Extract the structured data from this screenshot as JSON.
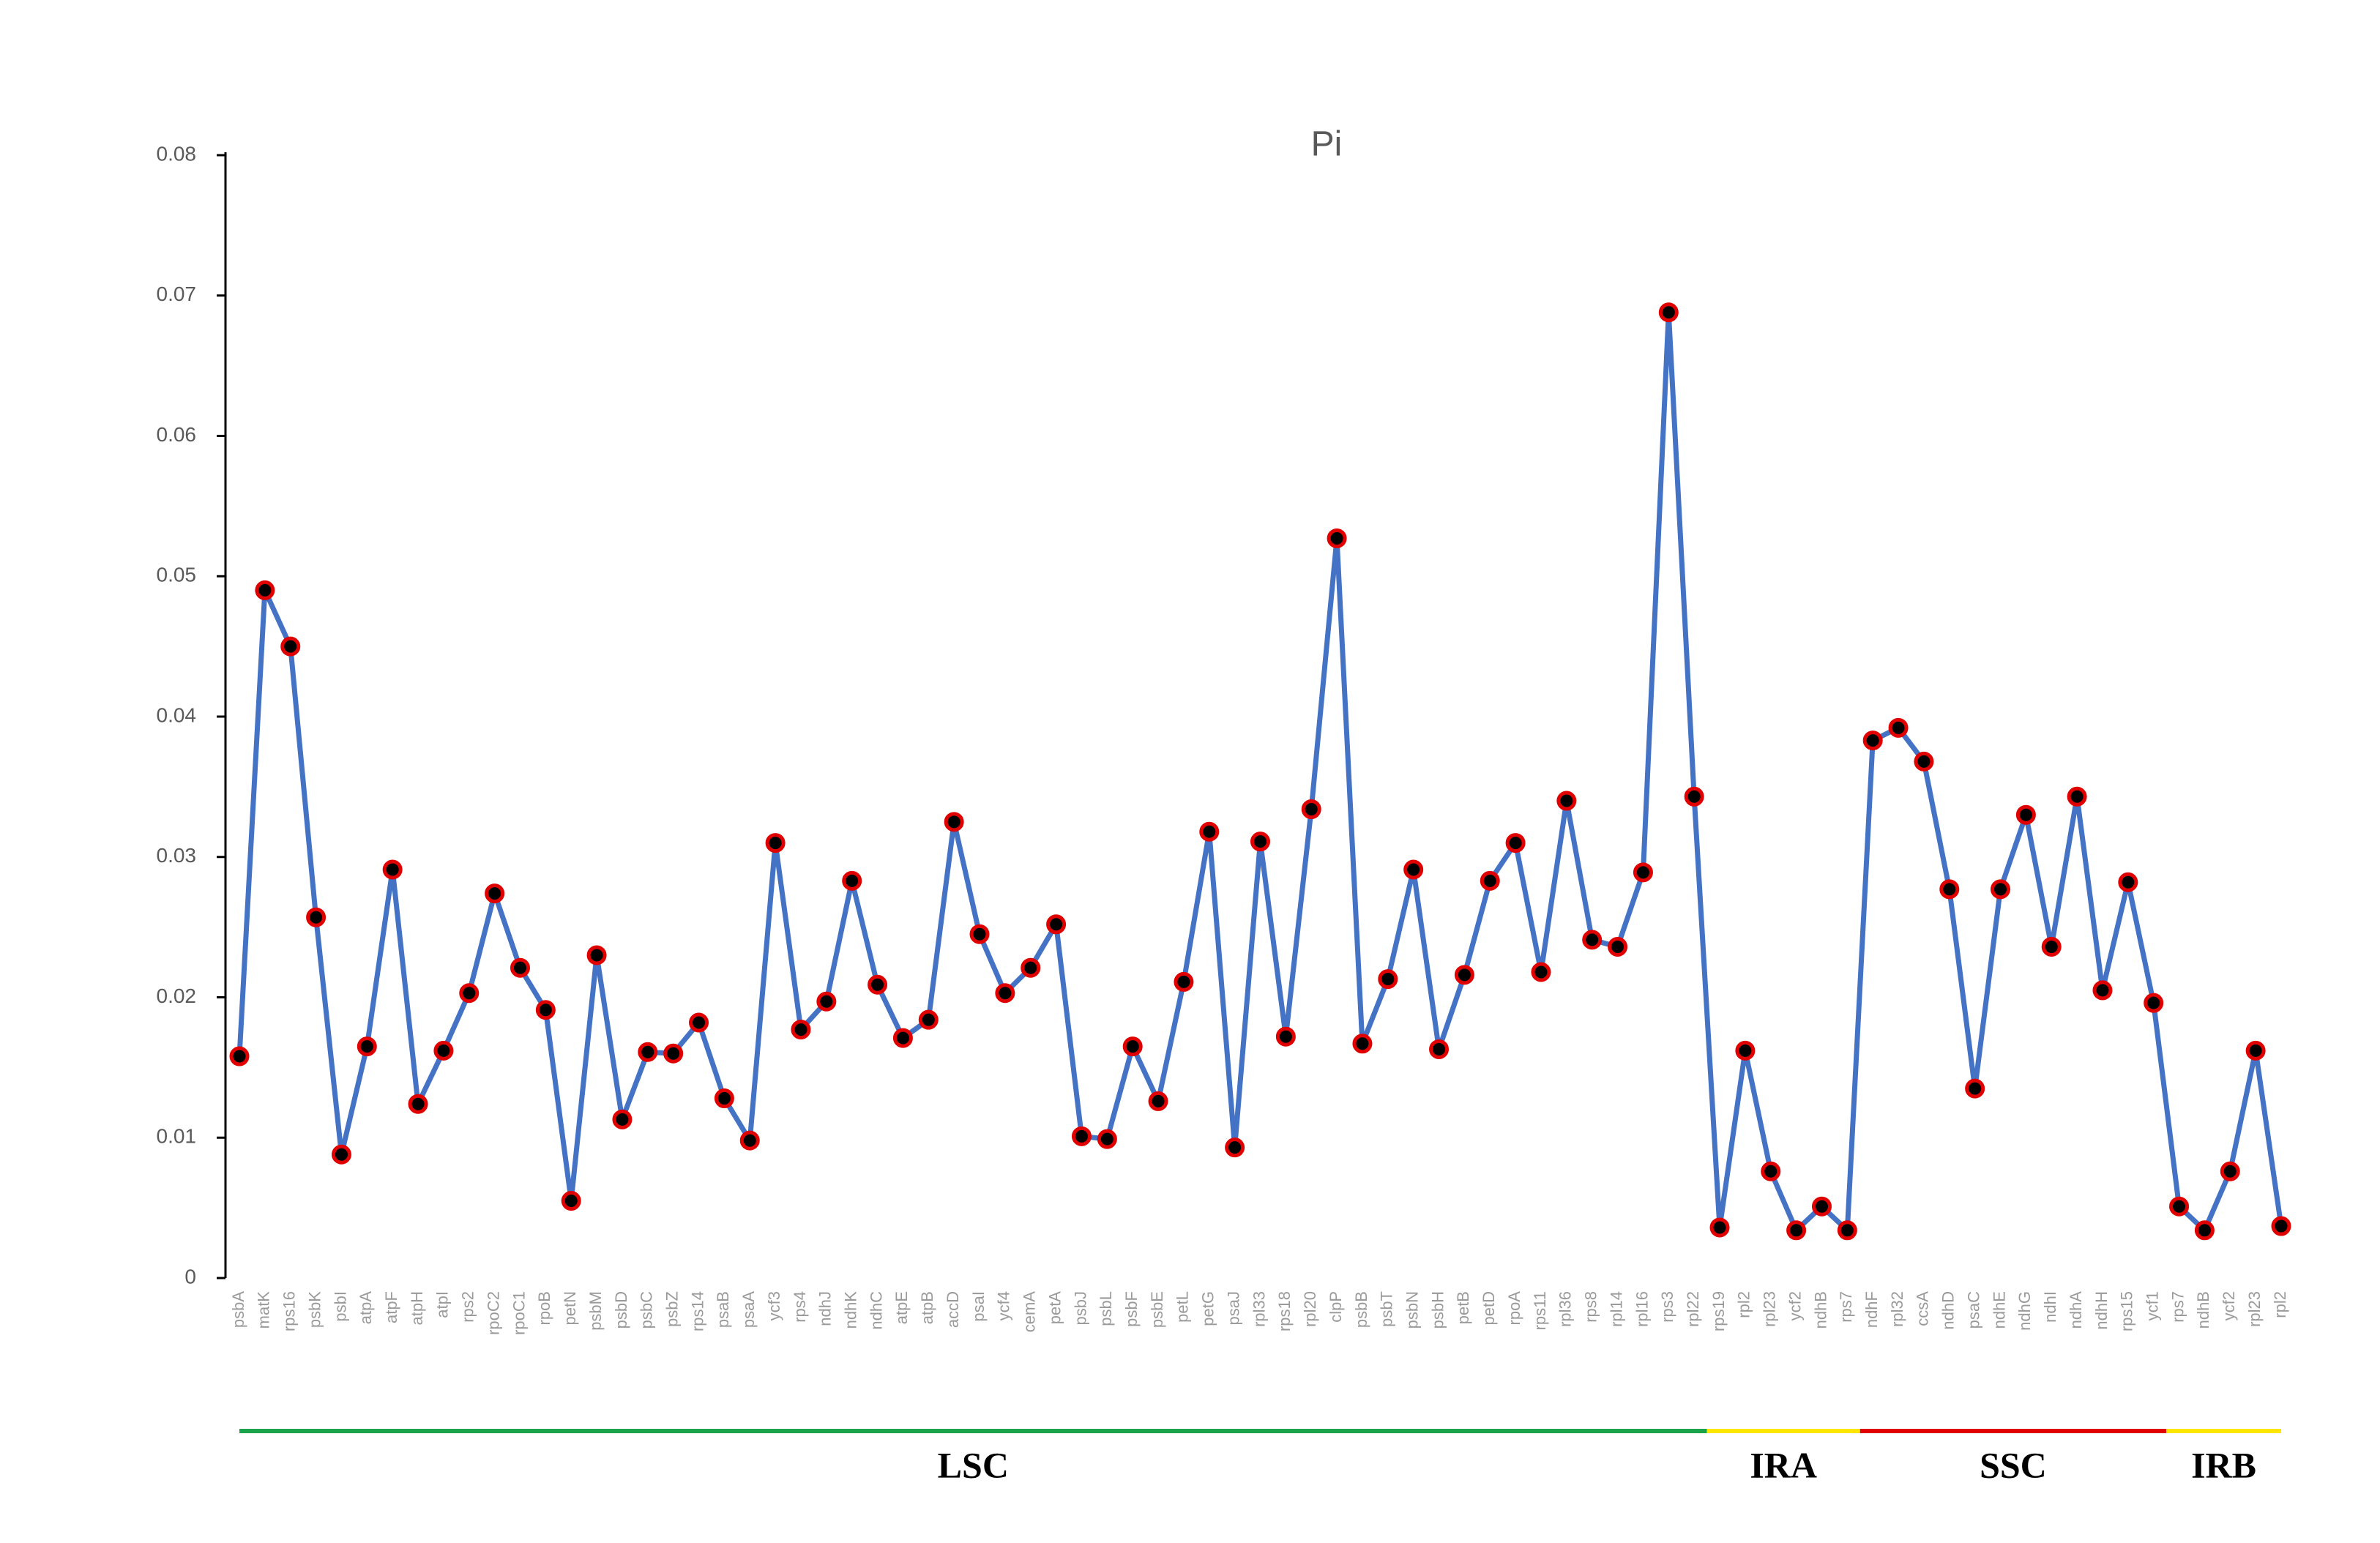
{
  "chart_data": {
    "type": "line",
    "title": "Pi",
    "categories": [
      "psbA",
      "matK",
      "rps16",
      "psbK",
      "psbI",
      "atpA",
      "atpF",
      "atpH",
      "atpI",
      "rps2",
      "rpoC2",
      "rpoC1",
      "rpoB",
      "petN",
      "psbM",
      "psbD",
      "psbC",
      "psbZ",
      "rps14",
      "psaB",
      "psaA",
      "ycf3",
      "rps4",
      "ndhJ",
      "ndhK",
      "ndhC",
      "atpE",
      "atpB",
      "accD",
      "psaI",
      "ycf4",
      "cemA",
      "petA",
      "psbJ",
      "psbL",
      "psbF",
      "psbE",
      "petL",
      "petG",
      "psaJ",
      "rpl33",
      "rps18",
      "rpl20",
      "clpP",
      "psbB",
      "psbT",
      "psbN",
      "psbH",
      "petB",
      "petD",
      "rpoA",
      "rps11",
      "rpl36",
      "rps8",
      "rpl14",
      "rpl16",
      "rps3",
      "rpl22",
      "rps19",
      "rpl2",
      "rpl23",
      "ycf2",
      "ndhB",
      "rps7",
      "ndhF",
      "rpl32",
      "ccsA",
      "ndhD",
      "psaC",
      "ndhE",
      "ndhG",
      "ndhI",
      "ndhA",
      "ndhH",
      "rps15",
      "ycf1",
      "rps7",
      "ndhB",
      "ycf2",
      "rpl23",
      "rpl2"
    ],
    "series": [
      {
        "name": "Pi",
        "color": "#4472c4",
        "marker_fill": "#000000",
        "marker_edge": "#e00000",
        "values": [
          0.0158,
          0.049,
          0.045,
          0.0257,
          0.0088,
          0.0165,
          0.0291,
          0.0124,
          0.0162,
          0.0203,
          0.0274,
          0.0221,
          0.0191,
          0.0055,
          0.023,
          0.0113,
          0.0161,
          0.016,
          0.0182,
          0.0128,
          0.0098,
          0.031,
          0.0177,
          0.0197,
          0.0283,
          0.0209,
          0.0171,
          0.0184,
          0.0325,
          0.0245,
          0.0203,
          0.0221,
          0.0252,
          0.0101,
          0.0099,
          0.0165,
          0.0126,
          0.0211,
          0.0318,
          0.0093,
          0.0311,
          0.0172,
          0.0334,
          0.0527,
          0.0167,
          0.0213,
          0.0291,
          0.0163,
          0.0216,
          0.0283,
          0.031,
          0.0218,
          0.034,
          0.0241,
          0.0236,
          0.0289,
          0.0688,
          0.0343,
          0.0036,
          0.0162,
          0.0076,
          0.0034,
          0.0051,
          0.0034,
          0.0383,
          0.0392,
          0.0368,
          0.0277,
          0.0135,
          0.0277,
          0.033,
          0.0236,
          0.0343,
          0.0205,
          0.0282,
          0.0196,
          0.0051,
          0.0034,
          0.0076,
          0.0162,
          0.0037
        ]
      }
    ],
    "ylim": [
      0,
      0.08
    ],
    "yticks": [
      0,
      0.01,
      0.02,
      0.03,
      0.04,
      0.05,
      0.06,
      0.07,
      0.08
    ],
    "regions": [
      {
        "name": "LSC",
        "color": "#1aa34a",
        "start": 0,
        "end": 57
      },
      {
        "name": "IRA",
        "color": "#ffe600",
        "start": 58,
        "end": 63
      },
      {
        "name": "SSC",
        "color": "#e00000",
        "start": 64,
        "end": 75
      },
      {
        "name": "IRB",
        "color": "#ffe600",
        "start": 76,
        "end": 80
      }
    ]
  }
}
